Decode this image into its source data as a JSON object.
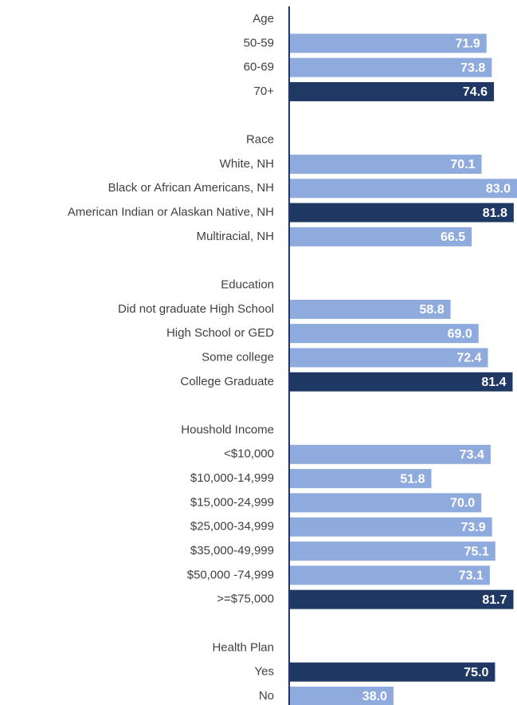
{
  "chart_data": {
    "type": "bar",
    "orientation": "horizontal",
    "categories": [
      "Age",
      "50-59",
      "60-69",
      "70+",
      null,
      "Race",
      "White, NH",
      "Black or African Americans, NH",
      "American Indian or Alaskan Native, NH",
      "Multiracial, NH",
      null,
      "Education",
      "Did not graduate High School",
      "High School or GED",
      "Some college",
      "College Graduate",
      null,
      "Houshold Income",
      "<$10,000",
      "$10,000-14,999",
      "$15,000-24,999",
      "$25,000-34,999",
      "$35,000-49,999",
      "$50,000 -74,999",
      ">=$75,000",
      null,
      "Health Plan",
      "Yes",
      "No"
    ],
    "values": [
      null,
      71.9,
      73.8,
      74.6,
      null,
      null,
      70.1,
      83.0,
      81.8,
      66.5,
      null,
      null,
      58.8,
      69.0,
      72.4,
      81.4,
      null,
      null,
      73.4,
      51.8,
      70.0,
      73.9,
      75.1,
      73.1,
      81.7,
      null,
      null,
      75.0,
      38.0
    ],
    "value_labels": [
      null,
      "71.9",
      "73.8",
      "74.6",
      null,
      null,
      "70.1",
      "83.0",
      "81.8",
      "66.5",
      null,
      null,
      "58.8",
      "69.0",
      "72.4",
      "81.4",
      null,
      null,
      "73.4",
      "51.8",
      "70.0",
      "73.9",
      "75.1",
      "73.1",
      "81.7",
      null,
      null,
      "75.0",
      "38.0"
    ],
    "colors": [
      null,
      "#8faadc",
      "#8faadc",
      "#203864",
      null,
      null,
      "#8faadc",
      "#8faadc",
      "#203864",
      "#8faadc",
      null,
      null,
      "#8faadc",
      "#8faadc",
      "#8faadc",
      "#203864",
      null,
      null,
      "#8faadc",
      "#8faadc",
      "#8faadc",
      "#8faadc",
      "#8faadc",
      "#8faadc",
      "#203864",
      null,
      null,
      "#203864",
      "#8faadc"
    ],
    "xlim": [
      0,
      83
    ]
  }
}
